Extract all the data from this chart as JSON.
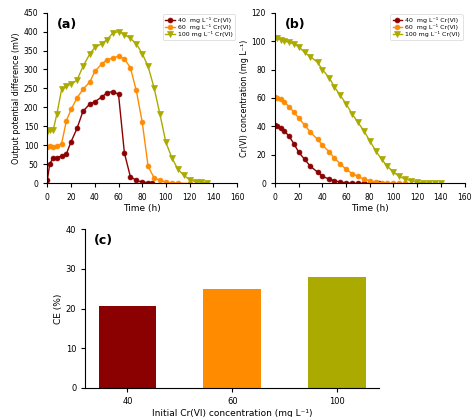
{
  "panel_a": {
    "title": "(a)",
    "xlabel": "Time (h)",
    "ylabel": "Output potential difference (mV)",
    "ylim": [
      0,
      450
    ],
    "xlim": [
      0,
      160
    ],
    "yticks": [
      0,
      50,
      100,
      150,
      200,
      250,
      300,
      350,
      400,
      450
    ],
    "xticks": [
      0,
      20,
      40,
      60,
      80,
      100,
      120,
      140,
      160
    ],
    "series": [
      {
        "label": "40  mg L⁻¹ Cr(VI)",
        "color": "#8B0000",
        "marker": "o",
        "x": [
          0,
          2,
          5,
          8,
          12,
          16,
          20,
          25,
          30,
          36,
          40,
          46,
          50,
          55,
          60,
          65,
          70,
          75,
          80,
          85,
          88
        ],
        "y": [
          10,
          52,
          68,
          68,
          72,
          78,
          110,
          145,
          190,
          210,
          215,
          228,
          238,
          242,
          235,
          80,
          18,
          8,
          4,
          2,
          1
        ]
      },
      {
        "label": "60  mg L⁻¹ Cr(VI)",
        "color": "#FF8C00",
        "marker": "o",
        "x": [
          0,
          2,
          5,
          8,
          12,
          16,
          20,
          25,
          30,
          36,
          40,
          46,
          50,
          55,
          60,
          65,
          70,
          75,
          80,
          85,
          90,
          95,
          100,
          105,
          110,
          120
        ],
        "y": [
          95,
          98,
          95,
          98,
          105,
          165,
          195,
          225,
          248,
          268,
          295,
          315,
          325,
          330,
          335,
          328,
          305,
          245,
          162,
          45,
          15,
          8,
          4,
          2,
          1,
          0
        ]
      },
      {
        "label": "100 mg L⁻¹ Cr(VI)",
        "color": "#AAAA00",
        "marker": "v",
        "x": [
          0,
          2,
          5,
          8,
          12,
          16,
          20,
          25,
          30,
          36,
          40,
          46,
          50,
          55,
          60,
          65,
          70,
          75,
          80,
          85,
          90,
          95,
          100,
          105,
          110,
          115,
          120,
          125,
          130,
          135
        ],
        "y": [
          135,
          142,
          142,
          183,
          248,
          256,
          262,
          272,
          308,
          342,
          358,
          368,
          378,
          395,
          400,
          392,
          382,
          368,
          342,
          308,
          252,
          182,
          108,
          68,
          38,
          22,
          10,
          5,
          3,
          1
        ]
      }
    ]
  },
  "panel_b": {
    "title": "(b)",
    "xlabel": "Time (h)",
    "ylabel": "Cr(VI) concentration (mg L⁻¹)",
    "ylim": [
      0,
      120
    ],
    "xlim": [
      0,
      160
    ],
    "yticks": [
      0,
      20,
      40,
      60,
      80,
      100,
      120
    ],
    "xticks": [
      0,
      20,
      40,
      60,
      80,
      100,
      120,
      140,
      160
    ],
    "series": [
      {
        "label": "40  mg L⁻¹ Cr(VI)",
        "color": "#8B0000",
        "marker": "o",
        "x": [
          0,
          2,
          5,
          8,
          12,
          16,
          20,
          25,
          30,
          36,
          40,
          46,
          50,
          55,
          60,
          65,
          70,
          75,
          80,
          85,
          88
        ],
        "y": [
          41,
          40,
          39,
          37,
          33,
          28,
          22,
          17,
          12,
          8,
          5,
          3,
          2,
          1,
          0.5,
          0.2,
          0.1,
          0.0,
          0.0,
          0.0,
          0.0
        ]
      },
      {
        "label": "60  mg L⁻¹ Cr(VI)",
        "color": "#FF8C00",
        "marker": "o",
        "x": [
          0,
          2,
          5,
          8,
          12,
          16,
          20,
          25,
          30,
          36,
          40,
          46,
          50,
          55,
          60,
          65,
          70,
          75,
          80,
          85,
          90,
          95,
          100,
          105,
          110,
          120
        ],
        "y": [
          61,
          60,
          59,
          57,
          54,
          50,
          46,
          41,
          36,
          31,
          27,
          22,
          18,
          14,
          10,
          7,
          5,
          3,
          2,
          1,
          0.5,
          0.2,
          0.1,
          0.0,
          0.0,
          0.0
        ]
      },
      {
        "label": "100 mg L⁻¹ Cr(VI)",
        "color": "#AAAA00",
        "marker": "v",
        "x": [
          0,
          2,
          5,
          8,
          12,
          16,
          20,
          25,
          30,
          36,
          40,
          46,
          50,
          55,
          60,
          65,
          70,
          75,
          80,
          85,
          90,
          95,
          100,
          105,
          110,
          115,
          120,
          125,
          130,
          135,
          140
        ],
        "y": [
          102,
          102,
          101,
          100,
          99,
          98,
          96,
          92,
          89,
          85,
          80,
          74,
          68,
          62,
          56,
          49,
          43,
          37,
          30,
          23,
          17,
          12,
          8,
          5,
          3,
          2,
          1,
          0.5,
          0.2,
          0.1,
          0.0
        ]
      }
    ]
  },
  "panel_c": {
    "title": "(c)",
    "xlabel": "Initial Cr(VI) concentration (mg L⁻¹)",
    "ylabel": "CE (%)",
    "ylim": [
      0,
      40
    ],
    "yticks": [
      0,
      10,
      20,
      30,
      40
    ],
    "categories": [
      "40",
      "60",
      "100"
    ],
    "values": [
      20.6,
      25.0,
      28.0
    ],
    "colors": [
      "#8B0000",
      "#FF8C00",
      "#AAAA00"
    ]
  },
  "bg_color": "#ffffff",
  "figure_bg": "#ffffff"
}
